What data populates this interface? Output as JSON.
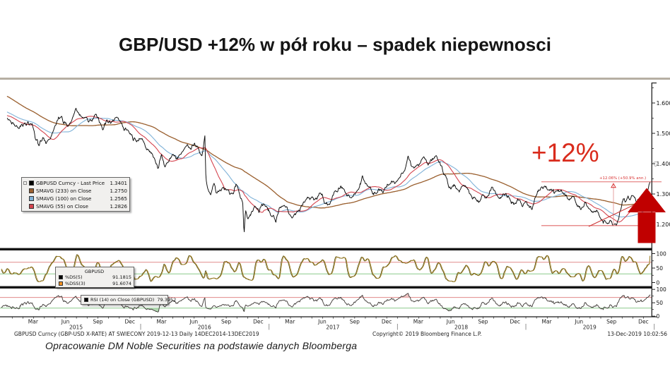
{
  "title": "GBP/USD +12% w pół roku – spadek niepewnosci",
  "annotation": {
    "big_label": "+12%",
    "change_label": "+12.06% (+50.9% ann.)",
    "color": "#c00000"
  },
  "legend_main": {
    "rows": [
      {
        "label": "GBPUSD Curncy - Last Price",
        "value": "1.3401",
        "color": "#000000"
      },
      {
        "label": "SMAVG (233)  on Close",
        "value": "1.2750",
        "color": "#9a5f2e"
      },
      {
        "label": "SMAVG (100)  on Close",
        "value": "1.2565",
        "color": "#7fb2d8"
      },
      {
        "label": "SMAVG (55)  on Close",
        "value": "1.2826",
        "color": "#d4444f"
      }
    ]
  },
  "legend_stoch": {
    "header": "GBPUSD",
    "rows": [
      {
        "label": "%DS(5)",
        "value": "91.1815",
        "color": "#000000"
      },
      {
        "label": "%DSS(3)",
        "value": "91.6074",
        "color": "#f19022"
      }
    ]
  },
  "legend_rsi": {
    "rows": [
      {
        "label": "RSI (14)  on Close (GBPUSD)",
        "value": "79.3952",
        "color": "#000000"
      }
    ]
  },
  "footer": {
    "left": "GBPUSD Curncy (GBP-USD X-RATE) AT SWIECONY 2019-12-13  Daily 14DEC2014-13DEC2019",
    "center": "Copyright© 2019 Bloomberg Finance L.P.",
    "right": "13-Dec-2019 10:02:56"
  },
  "source_note": "Opracowanie DM Noble Securities  na podstawie danych Bloomberga",
  "pane_label": "(5",
  "chart_data": [
    {
      "type": "line",
      "panel": "price",
      "title": "GBPUSD Curncy - Last Price",
      "x_range_months_from_2014_12": [
        0,
        60.15
      ],
      "x_axis": {
        "quarter_labels": [
          "Mar",
          "Jun",
          "Sep",
          "Dec"
        ],
        "years": [
          "2015",
          "2016",
          "2017",
          "2018",
          "2019"
        ]
      },
      "y_axis": {
        "ticks": [
          1.2,
          1.3,
          1.4,
          1.5,
          1.6
        ],
        "tick_format": "1.2000 style",
        "visible_range": [
          1.12,
          1.67
        ]
      },
      "last_price": 1.3401,
      "smavg": [
        {
          "window_days": 233,
          "value": 1.275,
          "color": "#9a5f2e"
        },
        {
          "window_days": 100,
          "value": 1.2565,
          "color": "#7fb2d8"
        },
        {
          "window_days": 55,
          "value": 1.2826,
          "color": "#d4444f"
        }
      ],
      "annotation_change": {
        "from_price": 1.1959,
        "to_price": 1.3401,
        "pct": "+12.06%",
        "annualized": "+50.9%"
      },
      "anchor_points": [
        [
          -8,
          1.676
        ],
        [
          -7,
          1.71
        ],
        [
          -6,
          1.695
        ],
        [
          -5,
          1.65
        ],
        [
          -4,
          1.62
        ],
        [
          -3,
          1.6
        ],
        [
          -2,
          1.575
        ],
        [
          -1,
          1.556
        ],
        [
          0,
          1.548
        ],
        [
          0.3,
          1.54
        ],
        [
          0.7,
          1.522
        ],
        [
          1.1,
          1.51
        ],
        [
          1.5,
          1.523
        ],
        [
          2,
          1.54
        ],
        [
          2.4,
          1.532
        ],
        [
          2.8,
          1.48
        ],
        [
          3.1,
          1.465
        ],
        [
          3.4,
          1.49
        ],
        [
          3.7,
          1.463
        ],
        [
          4,
          1.478
        ],
        [
          4.4,
          1.51
        ],
        [
          4.8,
          1.545
        ],
        [
          5.2,
          1.552
        ],
        [
          5.5,
          1.53
        ],
        [
          5.8,
          1.53
        ],
        [
          6.2,
          1.562
        ],
        [
          6.5,
          1.588
        ],
        [
          6.8,
          1.572
        ],
        [
          7.1,
          1.558
        ],
        [
          7.4,
          1.565
        ],
        [
          7.7,
          1.55
        ],
        [
          8,
          1.546
        ],
        [
          8.4,
          1.578
        ],
        [
          8.7,
          1.54
        ],
        [
          9,
          1.518
        ],
        [
          9.4,
          1.538
        ],
        [
          9.8,
          1.53
        ],
        [
          10.2,
          1.546
        ],
        [
          10.6,
          1.54
        ],
        [
          11,
          1.508
        ],
        [
          11.4,
          1.51
        ],
        [
          11.8,
          1.49
        ],
        [
          12.2,
          1.475
        ],
        [
          12.6,
          1.49
        ],
        [
          13,
          1.46
        ],
        [
          13.4,
          1.44
        ],
        [
          13.8,
          1.428
        ],
        [
          14.2,
          1.39
        ],
        [
          14.5,
          1.435
        ],
        [
          14.8,
          1.39
        ],
        [
          15.2,
          1.41
        ],
        [
          15.6,
          1.438
        ],
        [
          16,
          1.422
        ],
        [
          16.4,
          1.44
        ],
        [
          16.8,
          1.46
        ],
        [
          17.2,
          1.444
        ],
        [
          17.6,
          1.47
        ],
        [
          18,
          1.44
        ],
        [
          18.3,
          1.42
        ],
        [
          18.55,
          1.488
        ],
        [
          18.65,
          1.35
        ],
        [
          18.8,
          1.32
        ],
        [
          19.1,
          1.3
        ],
        [
          19.4,
          1.334
        ],
        [
          19.7,
          1.303
        ],
        [
          20,
          1.31
        ],
        [
          20.4,
          1.324
        ],
        [
          20.8,
          1.31
        ],
        [
          21.2,
          1.3
        ],
        [
          21.5,
          1.334
        ],
        [
          21.8,
          1.297
        ],
        [
          22.1,
          1.27
        ],
        [
          22.22,
          1.165
        ],
        [
          22.35,
          1.24
        ],
        [
          22.6,
          1.22
        ],
        [
          22.9,
          1.245
        ],
        [
          23.2,
          1.26
        ],
        [
          23.6,
          1.24
        ],
        [
          24,
          1.27
        ],
        [
          24.4,
          1.255
        ],
        [
          24.7,
          1.225
        ],
        [
          25,
          1.215
        ],
        [
          25.15,
          1.198
        ],
        [
          25.5,
          1.25
        ],
        [
          25.9,
          1.26
        ],
        [
          26.3,
          1.245
        ],
        [
          26.7,
          1.22
        ],
        [
          27,
          1.24
        ],
        [
          27.4,
          1.255
        ],
        [
          27.8,
          1.28
        ],
        [
          28.2,
          1.29
        ],
        [
          28.6,
          1.285
        ],
        [
          29,
          1.29
        ],
        [
          29.4,
          1.305
        ],
        [
          29.8,
          1.27
        ],
        [
          30.2,
          1.265
        ],
        [
          30.6,
          1.3
        ],
        [
          31,
          1.31
        ],
        [
          31.4,
          1.32
        ],
        [
          31.8,
          1.3
        ],
        [
          32.2,
          1.288
        ],
        [
          32.6,
          1.3
        ],
        [
          33,
          1.32
        ],
        [
          33.3,
          1.36
        ],
        [
          33.6,
          1.34
        ],
        [
          34,
          1.325
        ],
        [
          34.4,
          1.306
        ],
        [
          34.8,
          1.32
        ],
        [
          35.2,
          1.31
        ],
        [
          35.6,
          1.33
        ],
        [
          36,
          1.34
        ],
        [
          36.4,
          1.35
        ],
        [
          36.8,
          1.36
        ],
        [
          37.2,
          1.38
        ],
        [
          37.5,
          1.425
        ],
        [
          37.8,
          1.4
        ],
        [
          38.2,
          1.39
        ],
        [
          38.6,
          1.4
        ],
        [
          39,
          1.42
        ],
        [
          39.4,
          1.4
        ],
        [
          39.8,
          1.42
        ],
        [
          40.2,
          1.432
        ],
        [
          40.6,
          1.4
        ],
        [
          41,
          1.36
        ],
        [
          41.4,
          1.33
        ],
        [
          41.8,
          1.328
        ],
        [
          42.2,
          1.31
        ],
        [
          42.6,
          1.33
        ],
        [
          43,
          1.32
        ],
        [
          43.4,
          1.3
        ],
        [
          43.8,
          1.28
        ],
        [
          44.2,
          1.272
        ],
        [
          44.6,
          1.29
        ],
        [
          45,
          1.285
        ],
        [
          45.4,
          1.31
        ],
        [
          45.8,
          1.296
        ],
        [
          46.2,
          1.28
        ],
        [
          46.6,
          1.3
        ],
        [
          47,
          1.282
        ],
        [
          47.4,
          1.265
        ],
        [
          47.8,
          1.282
        ],
        [
          48.2,
          1.262
        ],
        [
          48.6,
          1.27
        ],
        [
          49,
          1.26
        ],
        [
          49.1,
          1.243
        ],
        [
          49.5,
          1.293
        ],
        [
          49.9,
          1.31
        ],
        [
          50.3,
          1.325
        ],
        [
          50.7,
          1.31
        ],
        [
          51,
          1.315
        ],
        [
          51.3,
          1.302
        ],
        [
          51.7,
          1.32
        ],
        [
          52.1,
          1.31
        ],
        [
          52.5,
          1.29
        ],
        [
          52.9,
          1.3
        ],
        [
          53.3,
          1.268
        ],
        [
          53.7,
          1.258
        ],
        [
          54.1,
          1.268
        ],
        [
          54.5,
          1.25
        ],
        [
          54.9,
          1.238
        ],
        [
          55.2,
          1.24
        ],
        [
          55.45,
          1.222
        ],
        [
          55.7,
          1.21
        ],
        [
          55.95,
          1.215
        ],
        [
          56.2,
          1.202
        ],
        [
          56.45,
          1.21
        ],
        [
          56.65,
          1.197
        ],
        [
          56.85,
          1.203
        ],
        [
          57.0,
          1.198
        ],
        [
          57.15,
          1.21
        ],
        [
          57.35,
          1.245
        ],
        [
          57.5,
          1.26
        ],
        [
          57.7,
          1.292
        ],
        [
          57.9,
          1.285
        ],
        [
          58.1,
          1.295
        ],
        [
          58.3,
          1.284
        ],
        [
          58.5,
          1.292
        ],
        [
          58.7,
          1.287
        ],
        [
          58.9,
          1.279
        ],
        [
          59.1,
          1.285
        ],
        [
          59.3,
          1.29
        ],
        [
          59.5,
          1.285
        ],
        [
          59.7,
          1.295
        ],
        [
          59.9,
          1.305
        ],
        [
          60.02,
          1.318
        ],
        [
          60.15,
          1.3401
        ]
      ]
    },
    {
      "type": "line",
      "panel": "stochastic",
      "series": [
        {
          "name": "%DS(5)",
          "last_value": 91.1815,
          "color": "#000000"
        },
        {
          "name": "%DSS(3)",
          "last_value": 91.6074,
          "color": "#f19022"
        }
      ],
      "y_axis": {
        "ticks": [
          0,
          50,
          100
        ],
        "range": [
          0,
          100
        ]
      },
      "threshold_lines": [
        {
          "value": 70,
          "color": "#e08a8a"
        },
        {
          "value": 30,
          "color": "#8cc98c"
        }
      ]
    },
    {
      "type": "line",
      "panel": "rsi",
      "series": [
        {
          "name": "RSI (14) on Close (GBPUSD)",
          "last_value": 79.3952,
          "color": "#3d3835"
        }
      ],
      "y_axis": {
        "ticks": [
          0,
          50,
          100
        ],
        "range": [
          0,
          100
        ]
      },
      "threshold_lines": [
        {
          "value": 70,
          "color": "#e08a8a"
        },
        {
          "value": 30,
          "color": "#8cc98c"
        }
      ]
    }
  ]
}
